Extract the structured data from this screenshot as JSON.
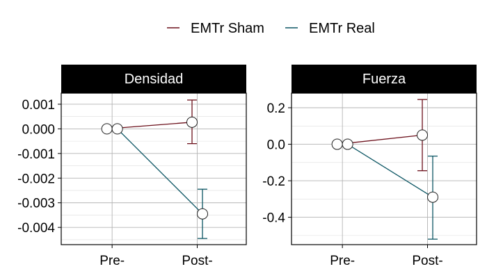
{
  "chart_data": {
    "type": "line",
    "categories": [
      "Pre-",
      "Post-"
    ],
    "legend": {
      "position": "top",
      "entries": [
        {
          "label": "EMTr Sham",
          "color": "#6b0f1a"
        },
        {
          "label": "EMTr Real",
          "color": "#0b5563"
        }
      ]
    },
    "grid": true,
    "panels": [
      {
        "title": "Densidad",
        "ylim": [
          -0.0047,
          0.00145
        ],
        "yticks": [
          0.001,
          0.0,
          -0.001,
          -0.002,
          -0.003,
          -0.004
        ],
        "ytick_labels": [
          "0.001",
          "0.000",
          "-0.001",
          "-0.002",
          "-0.003",
          "-0.004"
        ],
        "series": [
          {
            "name": "EMTr Sham",
            "values": [
              0.0,
              0.00027
            ],
            "error": [
              null,
              [
                -0.0006,
                0.00117
              ]
            ]
          },
          {
            "name": "EMTr Real",
            "values": [
              0.0,
              -0.00345
            ],
            "error": [
              null,
              [
                -0.00445,
                -0.00245
              ]
            ]
          }
        ]
      },
      {
        "title": "Fuerza",
        "ylim": [
          -0.55,
          0.28
        ],
        "yticks": [
          0.2,
          0.0,
          -0.2,
          -0.4
        ],
        "ytick_labels": [
          "0.2",
          "0.0",
          "-0.2",
          "-0.4"
        ],
        "series": [
          {
            "name": "EMTr Sham",
            "values": [
              0.0,
              0.05
            ],
            "error": [
              null,
              [
                -0.145,
                0.245
              ]
            ]
          },
          {
            "name": "EMTr Real",
            "values": [
              0.0,
              -0.29
            ],
            "error": [
              null,
              [
                -0.52,
                -0.065
              ]
            ]
          }
        ]
      }
    ]
  }
}
